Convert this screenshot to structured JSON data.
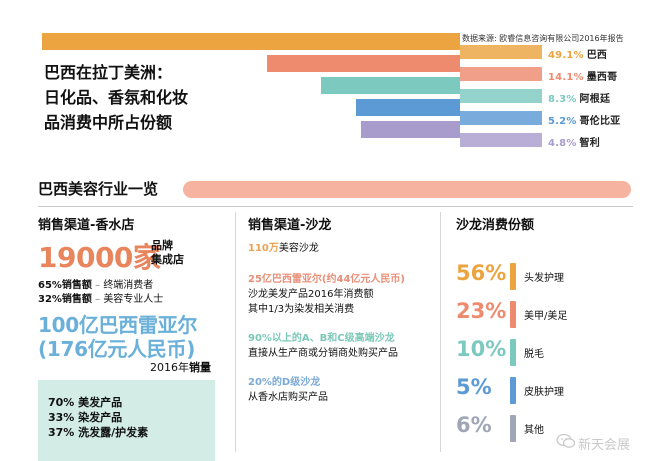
{
  "source_note": "数据来源: 欧睿信息咨询有限公司2016年报告",
  "main_title": [
    "巴西在拉丁美洲：",
    "日化品、香氛和化妆",
    "品消费中所占份额"
  ],
  "chart_data": {
    "type": "bar",
    "title": "巴西在拉丁美洲：日化品、香氛和化妆品消费中所占份额",
    "categories": [
      "巴西",
      "墨西哥",
      "阿根廷",
      "哥伦比亚",
      "智利"
    ],
    "values": [
      49.1,
      14.1,
      8.3,
      5.2,
      4.8
    ],
    "value_labels": [
      "49.1%",
      "14.1%",
      "8.3%",
      "5.2%",
      "4.8%"
    ],
    "unit": "%",
    "colors": [
      "#eba43f",
      "#ee8a6e",
      "#7cc9c0",
      "#5b9ad5",
      "#a89ccd"
    ],
    "ylim": [
      0,
      50
    ]
  },
  "section_title": "巴西美容行业一览",
  "left": {
    "heading": "销售渠道-香水店",
    "big_number": "19000家",
    "big_suffix": [
      "品牌",
      "集成店"
    ],
    "line1_pct": "65%销售额",
    "line1_rest": "终端消费者",
    "line2_pct": "32%销售额",
    "line2_rest": "美容专业人士",
    "blue1": "100亿巴西雷亚尔",
    "blue2": "(176亿元人民币)",
    "year_prefix": "2016年",
    "year_suffix": "销量",
    "box_lines": [
      "70% 美发产品",
      "33% 染发产品",
      "37% 洗发露/护发素"
    ]
  },
  "middle": {
    "heading": "销售渠道-沙龙",
    "item1_num": "110万",
    "item1_rest": "美容沙龙",
    "item2_head": "25亿巴西雷亚尔(约44亿元人民币)",
    "item2_l2": "沙龙美发产品2016年消费额",
    "item2_l3": "其中1/3为染发相关消费",
    "item3_head": "90%以上的A、B和C级高端沙龙",
    "item3_l2": "直接从生产商或分销商处购买产品",
    "item4_head": "20%的D级沙龙",
    "item4_l2": "从香水店购买产品"
  },
  "right": {
    "heading": "沙龙消费份额",
    "rows": [
      {
        "pct": "56%",
        "label": "头发护理",
        "color": "#eba43f"
      },
      {
        "pct": "23%",
        "label": "美甲/美足",
        "color": "#ee8a6e"
      },
      {
        "pct": "10%",
        "label": "脱毛",
        "color": "#7cc9c0"
      },
      {
        "pct": "5%",
        "label": "皮肤护理",
        "color": "#5b9ad5"
      },
      {
        "pct": "6%",
        "label": "其他",
        "color": "#a0a6b8"
      }
    ]
  },
  "watermark": "新天会展"
}
